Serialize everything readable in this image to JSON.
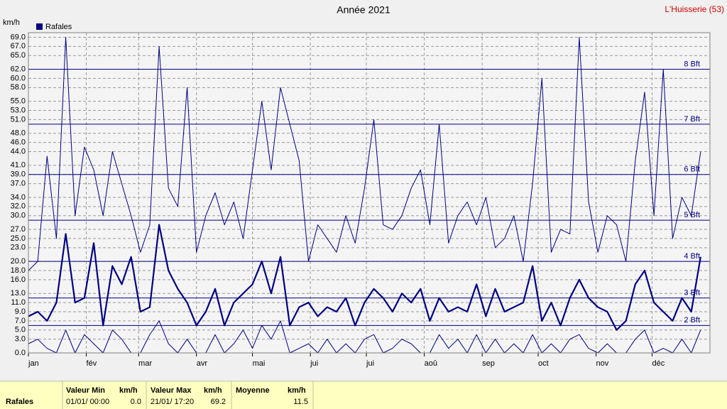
{
  "chart_data": {
    "type": "line",
    "title": "Année 2021",
    "location": "L'Huisserie (53)",
    "unit_label": "km/h",
    "x": [
      0,
      5,
      10,
      15,
      20,
      25,
      30,
      35,
      40,
      45,
      50,
      55,
      60,
      65,
      70,
      75,
      80,
      85,
      90,
      95,
      100,
      105,
      110,
      115,
      120,
      125,
      130,
      135,
      140,
      145,
      150,
      155,
      160,
      165,
      170,
      175,
      180,
      185,
      190,
      195,
      200,
      205,
      210,
      215,
      220,
      225,
      230,
      235,
      240,
      245,
      250,
      255,
      260,
      265,
      270,
      275,
      280,
      285,
      290,
      295,
      300,
      305,
      310,
      315,
      320,
      325,
      330,
      335,
      340,
      345,
      350,
      355,
      360
    ],
    "series": [
      {
        "name": "Rafales",
        "color": "#000080",
        "width": 1,
        "values": [
          18,
          20,
          43,
          25,
          69,
          30,
          45,
          40,
          30,
          44,
          37,
          30,
          22,
          28,
          67,
          36,
          32,
          58,
          22,
          30,
          35,
          28,
          33,
          25,
          40,
          55,
          40,
          58,
          50,
          42,
          20,
          28,
          25,
          22,
          30,
          24,
          36,
          51,
          28,
          27,
          30,
          36,
          40,
          28,
          50,
          24,
          30,
          33,
          28,
          34,
          23,
          25,
          30,
          20,
          37,
          60,
          22,
          27,
          26,
          69,
          33,
          22,
          30,
          28,
          20,
          42,
          57,
          30,
          62,
          25,
          34,
          30,
          44
        ]
      },
      {
        "color": "#000080",
        "width": 2.2,
        "values": [
          8,
          9,
          7,
          11,
          26,
          11,
          12,
          24,
          6,
          19,
          15,
          21,
          9,
          10,
          28,
          18,
          14,
          11,
          6,
          9,
          14,
          6,
          11,
          13,
          15,
          20,
          13,
          21,
          6,
          10,
          11,
          8,
          10,
          9,
          12,
          6,
          11,
          14,
          12,
          9,
          13,
          11,
          14,
          7,
          12,
          9,
          10,
          9,
          15,
          8,
          14,
          9,
          10,
          11,
          19,
          7,
          11,
          6,
          12,
          16,
          12,
          10,
          9,
          5,
          7,
          15,
          18,
          11,
          9,
          7,
          12,
          9,
          21
        ]
      },
      {
        "color": "#000080",
        "width": 1,
        "values": [
          2,
          3,
          1,
          0,
          5,
          0,
          4,
          2,
          0,
          5,
          3,
          0,
          0,
          4,
          7,
          2,
          0,
          3,
          0,
          0,
          4,
          0,
          2,
          5,
          1,
          6,
          3,
          7,
          0,
          1,
          2,
          0,
          3,
          0,
          2,
          0,
          3,
          4,
          0,
          1,
          3,
          2,
          0,
          0,
          4,
          1,
          3,
          0,
          4,
          0,
          3,
          0,
          2,
          0,
          4,
          0,
          2,
          0,
          3,
          4,
          1,
          0,
          2,
          0,
          0,
          3,
          5,
          0,
          1,
          0,
          3,
          0,
          5
        ]
      }
    ],
    "xlim": [
      0,
      365
    ],
    "xticks": [
      {
        "value": 0,
        "label": "jan"
      },
      {
        "value": 31,
        "label": "fév"
      },
      {
        "value": 59,
        "label": "mar"
      },
      {
        "value": 90,
        "label": "avr"
      },
      {
        "value": 120,
        "label": "mai"
      },
      {
        "value": 151,
        "label": "jui"
      },
      {
        "value": 181,
        "label": "jui"
      },
      {
        "value": 212,
        "label": "aoû"
      },
      {
        "value": 243,
        "label": "sep"
      },
      {
        "value": 273,
        "label": "oct"
      },
      {
        "value": 304,
        "label": "nov"
      },
      {
        "value": 334,
        "label": "déc"
      }
    ],
    "ylim": [
      0,
      70
    ],
    "yticks": [
      {
        "value": 0,
        "label": "0.0"
      },
      {
        "value": 3,
        "label": "3.0"
      },
      {
        "value": 5,
        "label": "5.0"
      },
      {
        "value": 7,
        "label": "7.0"
      },
      {
        "value": 9,
        "label": "9.0"
      },
      {
        "value": 11,
        "label": "11.0"
      },
      {
        "value": 13,
        "label": "13.0"
      },
      {
        "value": 16,
        "label": "16.0"
      },
      {
        "value": 18,
        "label": "18.0"
      },
      {
        "value": 20,
        "label": "20.0"
      },
      {
        "value": 23,
        "label": "23.0"
      },
      {
        "value": 25,
        "label": "25.0"
      },
      {
        "value": 27,
        "label": "27.0"
      },
      {
        "value": 30,
        "label": "30.0"
      },
      {
        "value": 32,
        "label": "32.0"
      },
      {
        "value": 34,
        "label": "34.0"
      },
      {
        "value": 37,
        "label": "37.0"
      },
      {
        "value": 39,
        "label": "39.0"
      },
      {
        "value": 41,
        "label": "41.0"
      },
      {
        "value": 44,
        "label": "44.0"
      },
      {
        "value": 46,
        "label": "46.0"
      },
      {
        "value": 48,
        "label": "48.0"
      },
      {
        "value": 51,
        "label": "51.0"
      },
      {
        "value": 53,
        "label": "53.0"
      },
      {
        "value": 55,
        "label": "55.0"
      },
      {
        "value": 58,
        "label": "58.0"
      },
      {
        "value": 60,
        "label": "60.0"
      },
      {
        "value": 62,
        "label": "62.0"
      },
      {
        "value": 65,
        "label": "65.0"
      },
      {
        "value": 67,
        "label": "67.0"
      },
      {
        "value": 69,
        "label": "69.0"
      }
    ],
    "bft_lines": [
      {
        "value": 6,
        "label": "2 Bft"
      },
      {
        "value": 12,
        "label": "3 Bft"
      },
      {
        "value": 20,
        "label": "4 Bft"
      },
      {
        "value": 29,
        "label": "5 Bft"
      },
      {
        "value": 39,
        "label": "6 Bft"
      },
      {
        "value": 50,
        "label": "7 Bft"
      },
      {
        "value": 62,
        "label": "8 Bft"
      }
    ],
    "grid": true
  },
  "summary": {
    "row_label": "Rafales",
    "columns": [
      {
        "header": "Valeur Min",
        "unit": "km/h",
        "date": "01/01/ 00:00",
        "value": "0.0"
      },
      {
        "header": "Valeur Max",
        "unit": "km/h",
        "date": "21/01/ 17:20",
        "value": "69.2"
      },
      {
        "header": "Moyenne",
        "unit": "km/h",
        "value": "11.5"
      }
    ]
  }
}
